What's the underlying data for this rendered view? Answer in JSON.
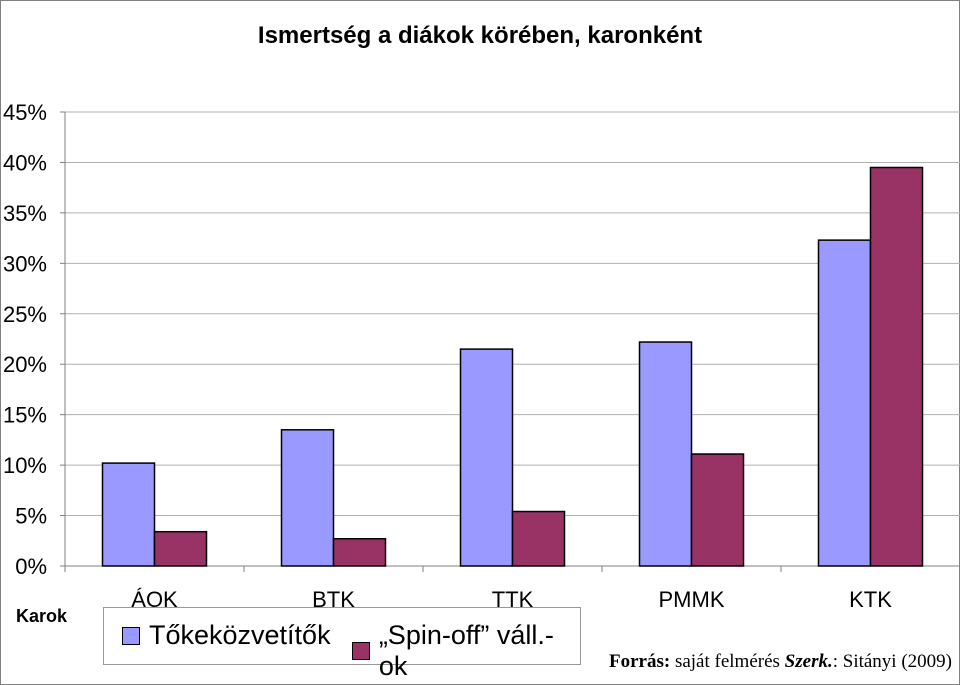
{
  "chart_data": {
    "type": "bar",
    "title": "Ismertség a diákok körében, karonként",
    "categories": [
      "ÁOK",
      "BTK",
      "TTK",
      "PMMK",
      "KTK"
    ],
    "series": [
      {
        "name": "Tőkeközvetítők",
        "values": [
          10.2,
          13.5,
          21.5,
          22.2,
          32.3
        ],
        "color": "#9999FF"
      },
      {
        "name": "„Spin-off” váll.-ok",
        "values": [
          3.4,
          2.7,
          5.4,
          11.1,
          39.5
        ],
        "color": "#993366"
      }
    ],
    "ylim": [
      0,
      45
    ],
    "yticks": [
      "0%",
      "5%",
      "10%",
      "15%",
      "20%",
      "25%",
      "30%",
      "35%",
      "40%",
      "45%"
    ],
    "ylabel": "",
    "xlabel": "Karok",
    "grid": true,
    "legend_position": "bottom-left"
  },
  "source": {
    "prefix": "Forrás:",
    "text": "saját felmérés",
    "editor_label": "Szerk.",
    "editor": ": Sitányi (2009)"
  }
}
